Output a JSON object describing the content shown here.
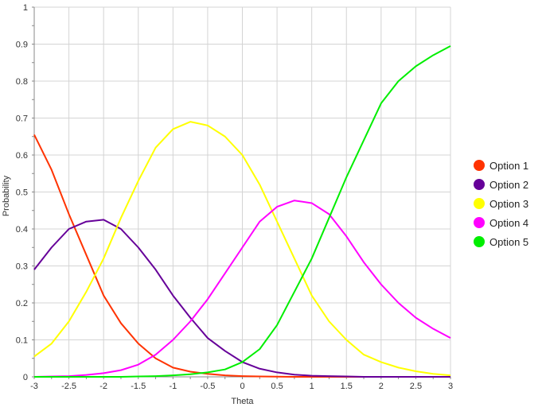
{
  "chart_data": {
    "type": "line",
    "title": "",
    "xlabel": "Theta",
    "ylabel": "Probability",
    "xlim": [
      -3,
      3
    ],
    "ylim": [
      0,
      1
    ],
    "grid": true,
    "legend_position": "right",
    "x_ticks": [
      -3,
      -2.5,
      -2,
      -1.5,
      -1,
      -0.5,
      0,
      0.5,
      1,
      1.5,
      2,
      2.5,
      3
    ],
    "y_ticks": [
      0,
      0.1,
      0.2,
      0.3,
      0.4,
      0.5,
      0.6,
      0.7,
      0.8,
      0.9,
      1
    ],
    "x": [
      -3,
      -2.75,
      -2.5,
      -2.25,
      -2,
      -1.75,
      -1.5,
      -1.25,
      -1,
      -0.75,
      -0.5,
      -0.25,
      0,
      0.25,
      0.5,
      0.75,
      1,
      1.25,
      1.5,
      1.75,
      2,
      2.25,
      2.5,
      2.75,
      3
    ],
    "series": [
      {
        "name": "Option 1",
        "color": "#ff3300",
        "values": [
          0.655,
          0.56,
          0.44,
          0.33,
          0.22,
          0.145,
          0.09,
          0.05,
          0.025,
          0.014,
          0.008,
          0.004,
          0.002,
          0.001,
          0.0005,
          0,
          0,
          0,
          0,
          0,
          0,
          0,
          0,
          0,
          0
        ]
      },
      {
        "name": "Option 2",
        "color": "#660099",
        "values": [
          0.29,
          0.35,
          0.4,
          0.42,
          0.425,
          0.4,
          0.35,
          0.29,
          0.22,
          0.16,
          0.105,
          0.07,
          0.04,
          0.022,
          0.012,
          0.006,
          0.003,
          0.002,
          0.001,
          0,
          0,
          0,
          0,
          0,
          0
        ]
      },
      {
        "name": "Option 3",
        "color": "#ffff00",
        "values": [
          0.055,
          0.09,
          0.15,
          0.23,
          0.32,
          0.43,
          0.53,
          0.62,
          0.67,
          0.69,
          0.68,
          0.65,
          0.6,
          0.52,
          0.42,
          0.32,
          0.22,
          0.15,
          0.1,
          0.06,
          0.04,
          0.025,
          0.015,
          0.008,
          0.004
        ]
      },
      {
        "name": "Option 4",
        "color": "#ff00ff",
        "values": [
          0,
          0.001,
          0.002,
          0.005,
          0.01,
          0.018,
          0.033,
          0.06,
          0.1,
          0.15,
          0.21,
          0.28,
          0.35,
          0.42,
          0.46,
          0.477,
          0.47,
          0.44,
          0.38,
          0.31,
          0.25,
          0.2,
          0.16,
          0.13,
          0.105
        ]
      },
      {
        "name": "Option 5",
        "color": "#00ee00",
        "values": [
          0,
          0,
          0,
          0,
          0,
          0,
          0.001,
          0.002,
          0.004,
          0.007,
          0.012,
          0.02,
          0.04,
          0.075,
          0.14,
          0.23,
          0.32,
          0.43,
          0.54,
          0.64,
          0.74,
          0.8,
          0.84,
          0.87,
          0.895
        ]
      }
    ]
  }
}
